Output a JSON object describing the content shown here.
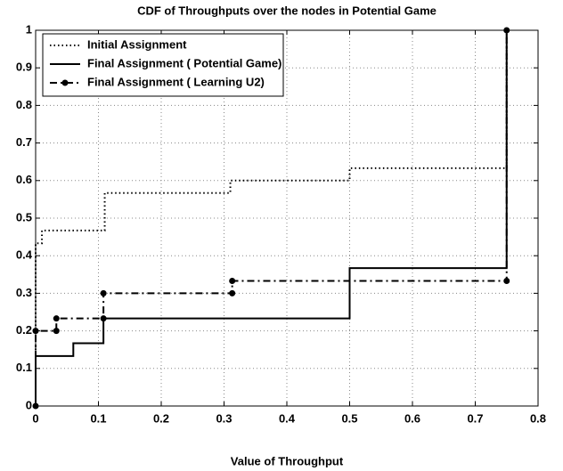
{
  "chart_data": {
    "type": "line",
    "title": "CDF of Throughputs over the nodes in Potential Game",
    "x_label": "Value of Throughput",
    "xlim": [
      0,
      0.8
    ],
    "xticks": [
      0,
      0.1,
      0.2,
      0.3,
      0.4,
      0.5,
      0.6,
      0.7,
      0.8
    ],
    "ylim": [
      0,
      1
    ],
    "yticks": [
      0,
      0.1,
      0.2,
      0.3,
      0.4,
      0.5,
      0.6,
      0.7,
      0.8,
      0.9,
      1
    ],
    "grid": true,
    "legend": "upper-left",
    "series": [
      {
        "name": "Initial Assignment",
        "color": "#000000",
        "line": "dotted",
        "marker": "none",
        "x": [
          0,
          0,
          0.01,
          0.01,
          0.11,
          0.11,
          0.31,
          0.31,
          0.5,
          0.5,
          0.75,
          0.75
        ],
        "y": [
          0,
          0.433,
          0.433,
          0.467,
          0.467,
          0.567,
          0.567,
          0.6,
          0.6,
          0.633,
          0.633,
          1
        ]
      },
      {
        "name": "Final Assignment ( Potential Game)",
        "color": "#000000",
        "line": "solid",
        "marker": "none",
        "x": [
          0,
          0,
          0.06,
          0.06,
          0.108,
          0.108,
          0.5,
          0.5,
          0.75,
          0.75
        ],
        "y": [
          0,
          0.133,
          0.133,
          0.167,
          0.167,
          0.233,
          0.233,
          0.367,
          0.367,
          1
        ]
      },
      {
        "name": "Final Assignment ( Learning U2)",
        "color": "#000000",
        "line": "dashdot",
        "marker": "circle",
        "x": [
          0,
          0,
          0.033,
          0.033,
          0.108,
          0.108,
          0.313,
          0.313,
          0.75,
          0.75
        ],
        "y": [
          0,
          0.2,
          0.2,
          0.233,
          0.233,
          0.3,
          0.3,
          0.333,
          0.333,
          1
        ]
      }
    ]
  }
}
